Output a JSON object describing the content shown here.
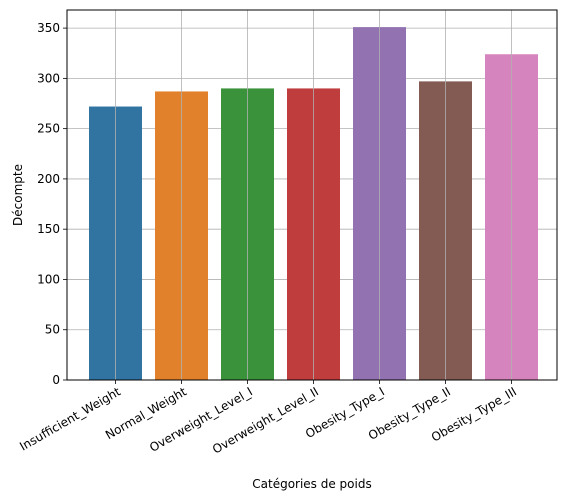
{
  "chart_data": {
    "type": "bar",
    "categories": [
      "Insufficient_Weight",
      "Normal_Weight",
      "Overweight_Level_I",
      "Overweight_Level_II",
      "Obesity_Type_I",
      "Obesity_Type_II",
      "Obesity_Type_III"
    ],
    "values": [
      272,
      287,
      290,
      290,
      351,
      297,
      324
    ],
    "colors": [
      "#3274a1",
      "#e1812c",
      "#3a923a",
      "#c03d3e",
      "#9372b2",
      "#845b53",
      "#d684bd"
    ],
    "xlabel": "Catégories de poids",
    "ylabel": "Décompte",
    "ylim": [
      0,
      368
    ],
    "yticks": [
      0,
      50,
      100,
      150,
      200,
      250,
      300,
      350
    ],
    "grid": true
  }
}
